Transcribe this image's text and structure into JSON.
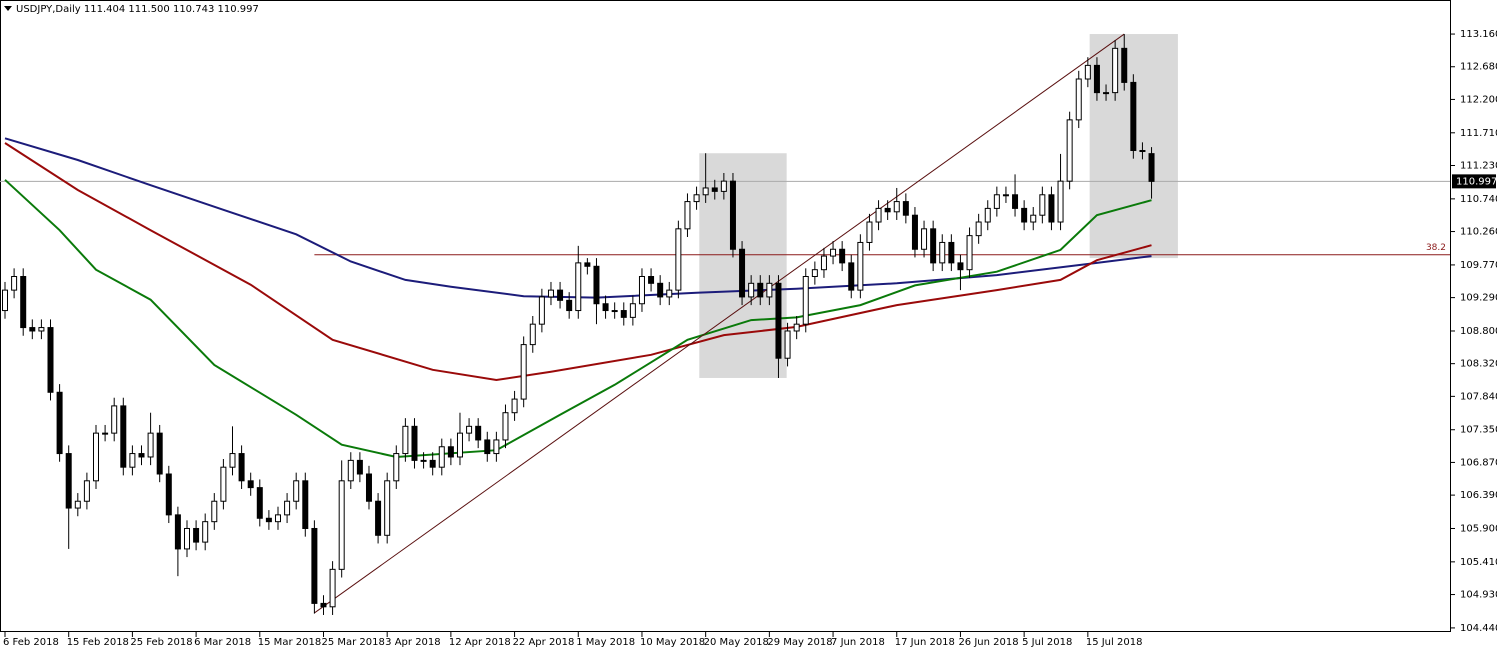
{
  "chart_data": {
    "type": "candlestick",
    "title": "USDJPY,Daily  111.404 111.500 110.743 110.997",
    "categories": [
      "6 Feb 2018",
      null,
      null,
      null,
      null,
      null,
      null,
      "15 Feb 2018",
      null,
      null,
      null,
      null,
      null,
      null,
      "25 Feb 2018",
      null,
      null,
      null,
      null,
      null,
      null,
      "6 Mar 2018",
      null,
      null,
      null,
      null,
      null,
      null,
      "15 Mar 2018",
      null,
      null,
      null,
      null,
      null,
      null,
      "25 Mar 2018",
      null,
      null,
      null,
      null,
      null,
      null,
      "3 Apr 2018",
      null,
      null,
      null,
      null,
      null,
      null,
      "12 Apr 2018",
      null,
      null,
      null,
      null,
      null,
      null,
      "22 Apr 2018",
      null,
      null,
      null,
      null,
      null,
      null,
      "1 May 2018",
      null,
      null,
      null,
      null,
      null,
      null,
      "10 May 2018",
      null,
      null,
      null,
      null,
      null,
      null,
      "20 May 2018",
      null,
      null,
      null,
      null,
      null,
      null,
      "29 May 2018",
      null,
      null,
      null,
      null,
      null,
      null,
      "7 Jun 2018",
      null,
      null,
      null,
      null,
      null,
      null,
      "17 Jun 2018",
      null,
      null,
      null,
      null,
      null,
      null,
      "26 Jun 2018",
      null,
      null,
      null,
      null,
      null,
      null,
      "5 Jul 2018",
      null,
      null,
      null,
      null,
      null,
      null,
      "15 Jul 2018",
      null,
      null,
      null,
      null,
      null,
      null,
      null
    ],
    "open": [
      109.1,
      109.4,
      109.6,
      108.85,
      108.8,
      108.85,
      107.9,
      107.0,
      106.2,
      106.3,
      106.6,
      107.3,
      107.3,
      107.7,
      106.8,
      107.0,
      106.95,
      107.3,
      106.7,
      106.1,
      105.6,
      105.9,
      105.7,
      106.0,
      106.3,
      106.8,
      107.0,
      106.6,
      106.5,
      106.05,
      106.0,
      106.1,
      106.3,
      106.6,
      105.9,
      104.8,
      104.75,
      105.3,
      106.6,
      106.9,
      106.7,
      106.3,
      105.8,
      106.6,
      107.0,
      107.4,
      106.9,
      106.9,
      106.8,
      107.1,
      106.95,
      107.3,
      107.4,
      107.2,
      107.0,
      107.2,
      107.6,
      107.8,
      108.6,
      108.9,
      109.3,
      109.4,
      109.25,
      109.1,
      109.8,
      109.75,
      109.2,
      109.1,
      109.1,
      109.0,
      109.2,
      109.6,
      109.5,
      109.3,
      109.4,
      110.3,
      110.7,
      110.8,
      110.9,
      110.85,
      111.0,
      110.0,
      109.3,
      109.5,
      109.3,
      109.5,
      108.4,
      108.8,
      108.9,
      109.6,
      109.7,
      109.9,
      110.0,
      109.8,
      109.4,
      110.1,
      110.4,
      110.6,
      110.55,
      110.7,
      110.5,
      110.0,
      110.3,
      109.8,
      110.1,
      109.8,
      109.7,
      110.2,
      110.4,
      110.6,
      110.8,
      110.8,
      110.6,
      110.4,
      110.5,
      110.8,
      110.4,
      111.0,
      111.9,
      112.5,
      112.7,
      112.3,
      112.3,
      112.95,
      112.45,
      111.45,
      111.404
    ],
    "high": [
      109.52,
      109.72,
      109.72,
      108.97,
      108.97,
      108.97,
      108.02,
      107.12,
      106.42,
      106.72,
      107.42,
      107.42,
      107.82,
      107.82,
      107.12,
      107.12,
      107.6,
      107.42,
      106.82,
      106.22,
      106.02,
      106.02,
      106.12,
      106.42,
      106.92,
      107.4,
      107.12,
      106.72,
      106.62,
      106.17,
      106.22,
      106.42,
      106.72,
      106.72,
      106.02,
      104.92,
      105.42,
      106.9,
      107.02,
      107.02,
      106.82,
      106.42,
      106.72,
      107.12,
      107.52,
      107.52,
      107.02,
      107.02,
      107.22,
      107.22,
      107.6,
      107.52,
      107.52,
      107.32,
      107.32,
      107.72,
      107.92,
      108.72,
      109.02,
      109.42,
      109.52,
      109.52,
      109.37,
      110.05,
      109.87,
      109.87,
      109.32,
      109.22,
      109.22,
      109.32,
      109.72,
      109.72,
      109.62,
      109.52,
      110.42,
      110.82,
      110.92,
      111.41,
      111.02,
      111.12,
      111.12,
      110.12,
      109.62,
      109.62,
      109.62,
      109.62,
      108.92,
      109.02,
      109.72,
      109.82,
      110.02,
      110.12,
      110.12,
      109.92,
      110.22,
      110.52,
      110.72,
      110.72,
      110.9,
      110.82,
      110.62,
      110.42,
      110.42,
      110.22,
      110.22,
      109.92,
      110.32,
      110.52,
      110.72,
      110.92,
      110.92,
      111.1,
      110.72,
      110.62,
      110.92,
      110.92,
      111.4,
      112.02,
      112.62,
      112.82,
      112.82,
      112.42,
      113.07,
      113.16,
      112.57,
      111.57,
      111.5
    ],
    "low": [
      108.98,
      109.28,
      108.73,
      108.68,
      108.68,
      107.78,
      106.88,
      105.6,
      106.08,
      106.18,
      106.48,
      107.18,
      107.18,
      106.68,
      106.68,
      106.83,
      106.83,
      106.58,
      105.98,
      105.2,
      105.48,
      105.58,
      105.58,
      105.88,
      106.18,
      106.68,
      106.48,
      106.38,
      105.93,
      105.88,
      105.88,
      105.98,
      106.18,
      105.78,
      104.65,
      104.63,
      104.63,
      105.18,
      106.48,
      106.58,
      106.18,
      105.68,
      105.68,
      106.48,
      106.88,
      106.78,
      106.78,
      106.68,
      106.68,
      106.83,
      106.83,
      107.18,
      107.08,
      106.88,
      106.88,
      107.08,
      107.48,
      107.68,
      108.48,
      108.78,
      109.18,
      109.13,
      108.98,
      108.98,
      109.63,
      108.9,
      108.98,
      108.98,
      108.88,
      108.88,
      109.08,
      109.38,
      109.18,
      109.18,
      109.28,
      110.18,
      110.58,
      110.68,
      110.73,
      110.73,
      109.88,
      109.18,
      109.18,
      109.18,
      109.18,
      108.11,
      108.28,
      108.68,
      108.78,
      109.48,
      109.58,
      109.78,
      109.68,
      109.28,
      109.28,
      109.98,
      110.28,
      110.43,
      110.43,
      110.38,
      109.88,
      109.88,
      109.68,
      109.68,
      109.68,
      109.4,
      109.58,
      110.08,
      110.28,
      110.48,
      110.68,
      110.48,
      110.28,
      110.28,
      110.38,
      110.28,
      110.28,
      110.88,
      111.78,
      112.38,
      112.18,
      112.18,
      112.18,
      112.33,
      111.33,
      111.32,
      110.743
    ],
    "close": [
      109.4,
      109.6,
      108.85,
      108.8,
      108.85,
      107.9,
      107.0,
      106.2,
      106.3,
      106.6,
      107.3,
      107.3,
      107.7,
      106.8,
      107.0,
      106.95,
      107.3,
      106.7,
      106.1,
      105.6,
      105.9,
      105.7,
      106.0,
      106.3,
      106.8,
      107.0,
      106.6,
      106.5,
      106.05,
      106.0,
      106.1,
      106.3,
      106.6,
      105.9,
      104.8,
      104.75,
      105.3,
      106.6,
      106.9,
      106.7,
      106.3,
      105.8,
      106.6,
      107.0,
      107.4,
      106.9,
      106.9,
      106.8,
      107.1,
      106.95,
      107.3,
      107.4,
      107.2,
      107.0,
      107.2,
      107.6,
      107.8,
      108.6,
      108.9,
      109.3,
      109.4,
      109.25,
      109.1,
      109.8,
      109.75,
      109.2,
      109.1,
      109.1,
      109.0,
      109.2,
      109.6,
      109.5,
      109.3,
      109.4,
      110.3,
      110.7,
      110.8,
      110.9,
      110.85,
      111.0,
      110.0,
      109.3,
      109.5,
      109.3,
      109.5,
      108.4,
      108.8,
      108.9,
      109.6,
      109.7,
      109.9,
      110.0,
      109.8,
      109.4,
      110.1,
      110.4,
      110.6,
      110.55,
      110.7,
      110.5,
      110.0,
      110.3,
      109.8,
      110.1,
      109.8,
      109.7,
      110.2,
      110.4,
      110.6,
      110.8,
      110.8,
      110.6,
      110.4,
      110.5,
      110.8,
      110.4,
      111.0,
      111.9,
      112.5,
      112.7,
      112.3,
      112.3,
      112.95,
      112.45,
      111.45,
      111.44,
      110.997
    ],
    "ma": [
      {
        "color": "#1c1c7a",
        "x": [
          0,
          8,
          16,
          24,
          32,
          38,
          44,
          49,
          57,
          65,
          76,
          87,
          98,
          109,
          120,
          126
        ],
        "values": [
          111.63,
          111.31,
          110.94,
          110.58,
          110.22,
          109.82,
          109.55,
          109.45,
          109.31,
          109.29,
          109.36,
          109.42,
          109.5,
          109.62,
          109.8,
          109.9
        ]
      },
      {
        "color": "#9a0a0a",
        "x": [
          0,
          8,
          16,
          27,
          36,
          47,
          54,
          60,
          71,
          79,
          87,
          98,
          109,
          116,
          120,
          126
        ],
        "values": [
          111.56,
          110.87,
          110.28,
          109.48,
          108.67,
          108.23,
          108.08,
          108.2,
          108.45,
          108.74,
          108.86,
          109.18,
          109.4,
          109.55,
          109.84,
          110.06
        ]
      },
      {
        "color": "#0a7a0a",
        "x": [
          0,
          6,
          10,
          16,
          23,
          32,
          37,
          43,
          54,
          61,
          67,
          75,
          82,
          87,
          94,
          100,
          109,
          116,
          120,
          126
        ],
        "values": [
          111.02,
          110.28,
          109.7,
          109.26,
          108.3,
          107.57,
          107.13,
          106.95,
          107.05,
          107.57,
          108.01,
          108.67,
          108.96,
          109.0,
          109.18,
          109.47,
          109.67,
          109.99,
          110.5,
          110.72
        ]
      }
    ],
    "trendline": {
      "x": [
        34,
        123
      ],
      "values": [
        104.66,
        113.16
      ]
    },
    "zones": [
      {
        "x": [
          76.3,
          85.9
        ],
        "values": [
          108.11,
          111.41
        ]
      },
      {
        "x": [
          119.2,
          128.9
        ],
        "values": [
          109.87,
          113.16
        ]
      }
    ],
    "level": {
      "label": "38.2",
      "value": 109.92,
      "x": 34
    },
    "current_price": 110.997,
    "xlim": [
      -0.55,
      158.8
    ],
    "ylim": [
      104.38,
      113.66
    ],
    "yticks": [
      {
        "value": 113.16,
        "label": "113.160"
      },
      {
        "value": 112.68,
        "label": "112.680"
      },
      {
        "value": 112.2,
        "label": "112.200"
      },
      {
        "value": 111.71,
        "label": "111.710"
      },
      {
        "value": 111.23,
        "label": "111.230"
      },
      {
        "value": 110.74,
        "label": "110.740"
      },
      {
        "value": 110.26,
        "label": "110.260"
      },
      {
        "value": 109.77,
        "label": "109.770"
      },
      {
        "value": 109.29,
        "label": "109.290"
      },
      {
        "value": 108.8,
        "label": "108.800"
      },
      {
        "value": 108.32,
        "label": "108.320"
      },
      {
        "value": 107.84,
        "label": "107.840"
      },
      {
        "value": 107.35,
        "label": "107.350"
      },
      {
        "value": 106.87,
        "label": "106.870"
      },
      {
        "value": 106.39,
        "label": "106.390"
      },
      {
        "value": 105.9,
        "label": "105.900"
      },
      {
        "value": 105.41,
        "label": "105.410"
      },
      {
        "value": 104.93,
        "label": "104.930"
      },
      {
        "value": 104.44,
        "label": "104.440"
      }
    ]
  }
}
